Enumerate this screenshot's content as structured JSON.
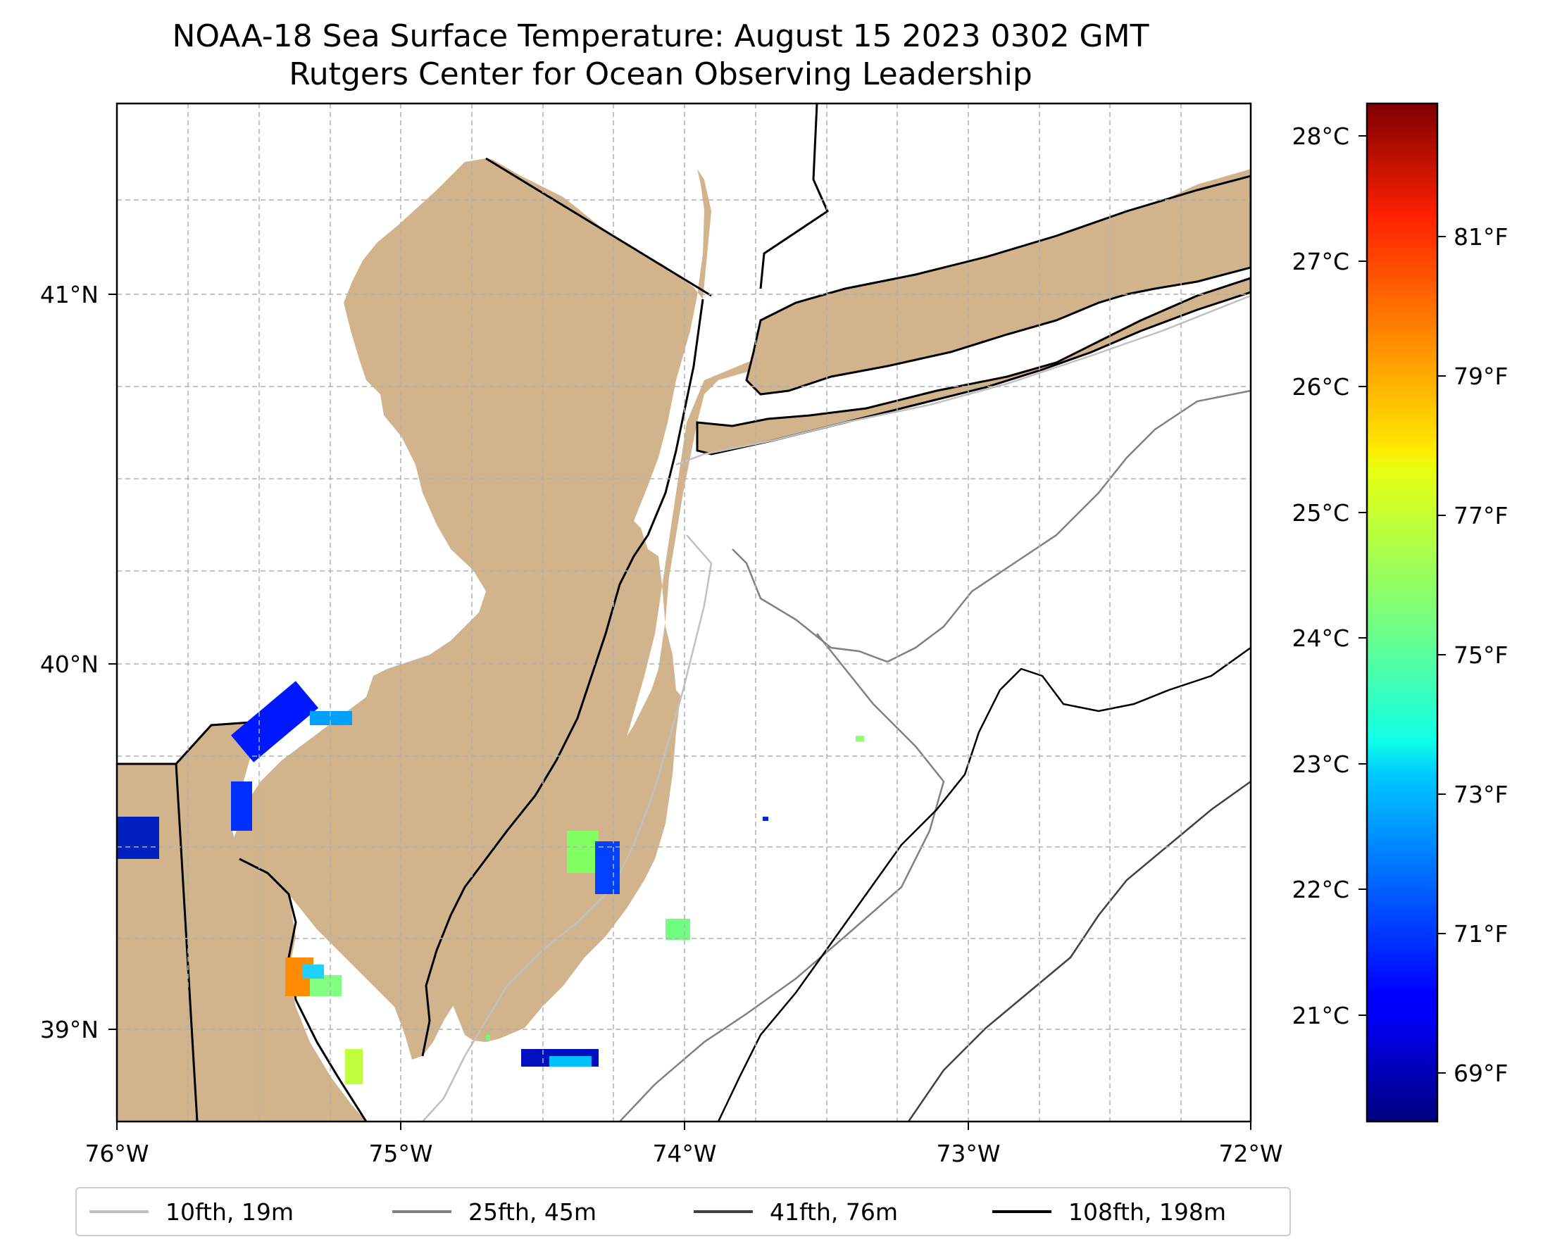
{
  "title": {
    "line1": "NOAA-18 Sea Surface Temperature: August 15 2023 0302 GMT",
    "line2": "Rutgers Center for Ocean Observing Leadership"
  },
  "colors": {
    "land": "#d2b48c",
    "ocean": "#ffffff",
    "coast": "#000000",
    "grid": "#b0b0b0"
  },
  "axes": {
    "lon_ticks": [
      "76°W",
      "75°W",
      "74°W",
      "73°W",
      "72°W"
    ],
    "lat_ticks": [
      "41°N",
      "40°N",
      "39°N"
    ]
  },
  "colorbar": {
    "celsius_ticks": [
      "28°C",
      "27°C",
      "26°C",
      "25°C",
      "24°C",
      "23°C",
      "22°C",
      "21°C"
    ],
    "fahrenheit_ticks": [
      "81°F",
      "79°F",
      "77°F",
      "75°F",
      "73°F",
      "71°F",
      "69°F"
    ]
  },
  "legend": [
    {
      "label": "10fth, 19m",
      "color": "#c0c0c0"
    },
    {
      "label": "25fth, 45m",
      "color": "#808080"
    },
    {
      "label": "41fth, 76m",
      "color": "#404040"
    },
    {
      "label": "108fth, 198m",
      "color": "#000000"
    }
  ]
}
